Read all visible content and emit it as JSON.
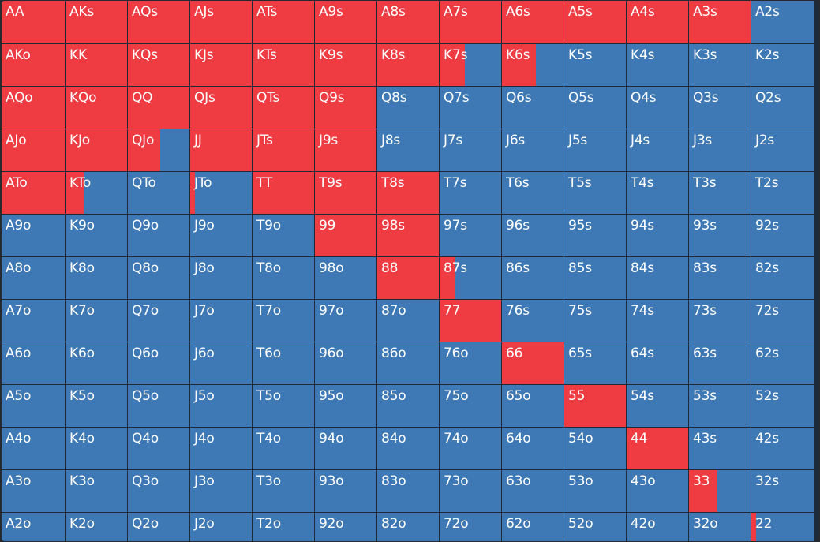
{
  "colors": {
    "raise": "#ef3c42",
    "fold": "#3e79b5",
    "grid_line": "#1d2a3a"
  },
  "hand_grid": [
    [
      {
        "hand": "AA",
        "raise_fraction": 1
      },
      {
        "hand": "AKs",
        "raise_fraction": 1
      },
      {
        "hand": "AQs",
        "raise_fraction": 1
      },
      {
        "hand": "AJs",
        "raise_fraction": 1
      },
      {
        "hand": "ATs",
        "raise_fraction": 1
      },
      {
        "hand": "A9s",
        "raise_fraction": 1
      },
      {
        "hand": "A8s",
        "raise_fraction": 1
      },
      {
        "hand": "A7s",
        "raise_fraction": 1
      },
      {
        "hand": "A6s",
        "raise_fraction": 1
      },
      {
        "hand": "A5s",
        "raise_fraction": 1
      },
      {
        "hand": "A4s",
        "raise_fraction": 1
      },
      {
        "hand": "A3s",
        "raise_fraction": 1
      },
      {
        "hand": "A2s",
        "raise_fraction": 0
      }
    ],
    [
      {
        "hand": "AKo",
        "raise_fraction": 1
      },
      {
        "hand": "KK",
        "raise_fraction": 1
      },
      {
        "hand": "KQs",
        "raise_fraction": 1
      },
      {
        "hand": "KJs",
        "raise_fraction": 1
      },
      {
        "hand": "KTs",
        "raise_fraction": 1
      },
      {
        "hand": "K9s",
        "raise_fraction": 1
      },
      {
        "hand": "K8s",
        "raise_fraction": 1
      },
      {
        "hand": "K7s",
        "raise_fraction": 0.41
      },
      {
        "hand": "K6s",
        "raise_fraction": 0.55
      },
      {
        "hand": "K5s",
        "raise_fraction": 0
      },
      {
        "hand": "K4s",
        "raise_fraction": 0
      },
      {
        "hand": "K3s",
        "raise_fraction": 0
      },
      {
        "hand": "K2s",
        "raise_fraction": 0
      }
    ],
    [
      {
        "hand": "AQo",
        "raise_fraction": 1
      },
      {
        "hand": "KQo",
        "raise_fraction": 1
      },
      {
        "hand": "QQ",
        "raise_fraction": 1
      },
      {
        "hand": "QJs",
        "raise_fraction": 1
      },
      {
        "hand": "QTs",
        "raise_fraction": 1
      },
      {
        "hand": "Q9s",
        "raise_fraction": 1
      },
      {
        "hand": "Q8s",
        "raise_fraction": 0
      },
      {
        "hand": "Q7s",
        "raise_fraction": 0
      },
      {
        "hand": "Q6s",
        "raise_fraction": 0
      },
      {
        "hand": "Q5s",
        "raise_fraction": 0
      },
      {
        "hand": "Q4s",
        "raise_fraction": 0
      },
      {
        "hand": "Q3s",
        "raise_fraction": 0
      },
      {
        "hand": "Q2s",
        "raise_fraction": 0
      }
    ],
    [
      {
        "hand": "AJo",
        "raise_fraction": 1
      },
      {
        "hand": "KJo",
        "raise_fraction": 1
      },
      {
        "hand": "QJo",
        "raise_fraction": 0.53
      },
      {
        "hand": "JJ",
        "raise_fraction": 1
      },
      {
        "hand": "JTs",
        "raise_fraction": 1
      },
      {
        "hand": "J9s",
        "raise_fraction": 1
      },
      {
        "hand": "J8s",
        "raise_fraction": 0
      },
      {
        "hand": "J7s",
        "raise_fraction": 0
      },
      {
        "hand": "J6s",
        "raise_fraction": 0
      },
      {
        "hand": "J5s",
        "raise_fraction": 0
      },
      {
        "hand": "J4s",
        "raise_fraction": 0
      },
      {
        "hand": "J3s",
        "raise_fraction": 0
      },
      {
        "hand": "J2s",
        "raise_fraction": 0
      }
    ],
    [
      {
        "hand": "ATo",
        "raise_fraction": 1
      },
      {
        "hand": "KTo",
        "raise_fraction": 0.3
      },
      {
        "hand": "QTo",
        "raise_fraction": 0
      },
      {
        "hand": "JTo",
        "raise_fraction": 0.08
      },
      {
        "hand": "TT",
        "raise_fraction": 1
      },
      {
        "hand": "T9s",
        "raise_fraction": 1
      },
      {
        "hand": "T8s",
        "raise_fraction": 1
      },
      {
        "hand": "T7s",
        "raise_fraction": 0
      },
      {
        "hand": "T6s",
        "raise_fraction": 0
      },
      {
        "hand": "T5s",
        "raise_fraction": 0
      },
      {
        "hand": "T4s",
        "raise_fraction": 0
      },
      {
        "hand": "T3s",
        "raise_fraction": 0
      },
      {
        "hand": "T2s",
        "raise_fraction": 0
      }
    ],
    [
      {
        "hand": "A9o",
        "raise_fraction": 0
      },
      {
        "hand": "K9o",
        "raise_fraction": 0
      },
      {
        "hand": "Q9o",
        "raise_fraction": 0
      },
      {
        "hand": "J9o",
        "raise_fraction": 0
      },
      {
        "hand": "T9o",
        "raise_fraction": 0
      },
      {
        "hand": "99",
        "raise_fraction": 1
      },
      {
        "hand": "98s",
        "raise_fraction": 1
      },
      {
        "hand": "97s",
        "raise_fraction": 0
      },
      {
        "hand": "96s",
        "raise_fraction": 0
      },
      {
        "hand": "95s",
        "raise_fraction": 0
      },
      {
        "hand": "94s",
        "raise_fraction": 0
      },
      {
        "hand": "93s",
        "raise_fraction": 0
      },
      {
        "hand": "92s",
        "raise_fraction": 0
      }
    ],
    [
      {
        "hand": "A8o",
        "raise_fraction": 0
      },
      {
        "hand": "K8o",
        "raise_fraction": 0
      },
      {
        "hand": "Q8o",
        "raise_fraction": 0
      },
      {
        "hand": "J8o",
        "raise_fraction": 0
      },
      {
        "hand": "T8o",
        "raise_fraction": 0
      },
      {
        "hand": "98o",
        "raise_fraction": 0
      },
      {
        "hand": "88",
        "raise_fraction": 1
      },
      {
        "hand": "87s",
        "raise_fraction": 0.26
      },
      {
        "hand": "86s",
        "raise_fraction": 0
      },
      {
        "hand": "85s",
        "raise_fraction": 0
      },
      {
        "hand": "84s",
        "raise_fraction": 0
      },
      {
        "hand": "83s",
        "raise_fraction": 0
      },
      {
        "hand": "82s",
        "raise_fraction": 0
      }
    ],
    [
      {
        "hand": "A7o",
        "raise_fraction": 0
      },
      {
        "hand": "K7o",
        "raise_fraction": 0
      },
      {
        "hand": "Q7o",
        "raise_fraction": 0
      },
      {
        "hand": "J7o",
        "raise_fraction": 0
      },
      {
        "hand": "T7o",
        "raise_fraction": 0
      },
      {
        "hand": "97o",
        "raise_fraction": 0
      },
      {
        "hand": "87o",
        "raise_fraction": 0
      },
      {
        "hand": "77",
        "raise_fraction": 1
      },
      {
        "hand": "76s",
        "raise_fraction": 0
      },
      {
        "hand": "75s",
        "raise_fraction": 0
      },
      {
        "hand": "74s",
        "raise_fraction": 0
      },
      {
        "hand": "73s",
        "raise_fraction": 0
      },
      {
        "hand": "72s",
        "raise_fraction": 0
      }
    ],
    [
      {
        "hand": "A6o",
        "raise_fraction": 0
      },
      {
        "hand": "K6o",
        "raise_fraction": 0
      },
      {
        "hand": "Q6o",
        "raise_fraction": 0
      },
      {
        "hand": "J6o",
        "raise_fraction": 0
      },
      {
        "hand": "T6o",
        "raise_fraction": 0
      },
      {
        "hand": "96o",
        "raise_fraction": 0
      },
      {
        "hand": "86o",
        "raise_fraction": 0
      },
      {
        "hand": "76o",
        "raise_fraction": 0
      },
      {
        "hand": "66",
        "raise_fraction": 1
      },
      {
        "hand": "65s",
        "raise_fraction": 0
      },
      {
        "hand": "64s",
        "raise_fraction": 0
      },
      {
        "hand": "63s",
        "raise_fraction": 0
      },
      {
        "hand": "62s",
        "raise_fraction": 0
      }
    ],
    [
      {
        "hand": "A5o",
        "raise_fraction": 0
      },
      {
        "hand": "K5o",
        "raise_fraction": 0
      },
      {
        "hand": "Q5o",
        "raise_fraction": 0
      },
      {
        "hand": "J5o",
        "raise_fraction": 0
      },
      {
        "hand": "T5o",
        "raise_fraction": 0
      },
      {
        "hand": "95o",
        "raise_fraction": 0
      },
      {
        "hand": "85o",
        "raise_fraction": 0
      },
      {
        "hand": "75o",
        "raise_fraction": 0
      },
      {
        "hand": "65o",
        "raise_fraction": 0
      },
      {
        "hand": "55",
        "raise_fraction": 1
      },
      {
        "hand": "54s",
        "raise_fraction": 0
      },
      {
        "hand": "53s",
        "raise_fraction": 0
      },
      {
        "hand": "52s",
        "raise_fraction": 0
      }
    ],
    [
      {
        "hand": "A4o",
        "raise_fraction": 0
      },
      {
        "hand": "K4o",
        "raise_fraction": 0
      },
      {
        "hand": "Q4o",
        "raise_fraction": 0
      },
      {
        "hand": "J4o",
        "raise_fraction": 0
      },
      {
        "hand": "T4o",
        "raise_fraction": 0
      },
      {
        "hand": "94o",
        "raise_fraction": 0
      },
      {
        "hand": "84o",
        "raise_fraction": 0
      },
      {
        "hand": "74o",
        "raise_fraction": 0
      },
      {
        "hand": "64o",
        "raise_fraction": 0
      },
      {
        "hand": "54o",
        "raise_fraction": 0
      },
      {
        "hand": "44",
        "raise_fraction": 1
      },
      {
        "hand": "43s",
        "raise_fraction": 0
      },
      {
        "hand": "42s",
        "raise_fraction": 0
      }
    ],
    [
      {
        "hand": "A3o",
        "raise_fraction": 0
      },
      {
        "hand": "K3o",
        "raise_fraction": 0
      },
      {
        "hand": "Q3o",
        "raise_fraction": 0
      },
      {
        "hand": "J3o",
        "raise_fraction": 0
      },
      {
        "hand": "T3o",
        "raise_fraction": 0
      },
      {
        "hand": "93o",
        "raise_fraction": 0
      },
      {
        "hand": "83o",
        "raise_fraction": 0
      },
      {
        "hand": "73o",
        "raise_fraction": 0
      },
      {
        "hand": "63o",
        "raise_fraction": 0
      },
      {
        "hand": "53o",
        "raise_fraction": 0
      },
      {
        "hand": "43o",
        "raise_fraction": 0
      },
      {
        "hand": "33",
        "raise_fraction": 0.46
      },
      {
        "hand": "32s",
        "raise_fraction": 0
      }
    ],
    [
      {
        "hand": "A2o",
        "raise_fraction": 0
      },
      {
        "hand": "K2o",
        "raise_fraction": 0
      },
      {
        "hand": "Q2o",
        "raise_fraction": 0
      },
      {
        "hand": "J2o",
        "raise_fraction": 0
      },
      {
        "hand": "T2o",
        "raise_fraction": 0
      },
      {
        "hand": "92o",
        "raise_fraction": 0
      },
      {
        "hand": "82o",
        "raise_fraction": 0
      },
      {
        "hand": "72o",
        "raise_fraction": 0
      },
      {
        "hand": "62o",
        "raise_fraction": 0
      },
      {
        "hand": "52o",
        "raise_fraction": 0
      },
      {
        "hand": "42o",
        "raise_fraction": 0
      },
      {
        "hand": "32o",
        "raise_fraction": 0
      },
      {
        "hand": "22",
        "raise_fraction": 0.08
      }
    ]
  ]
}
